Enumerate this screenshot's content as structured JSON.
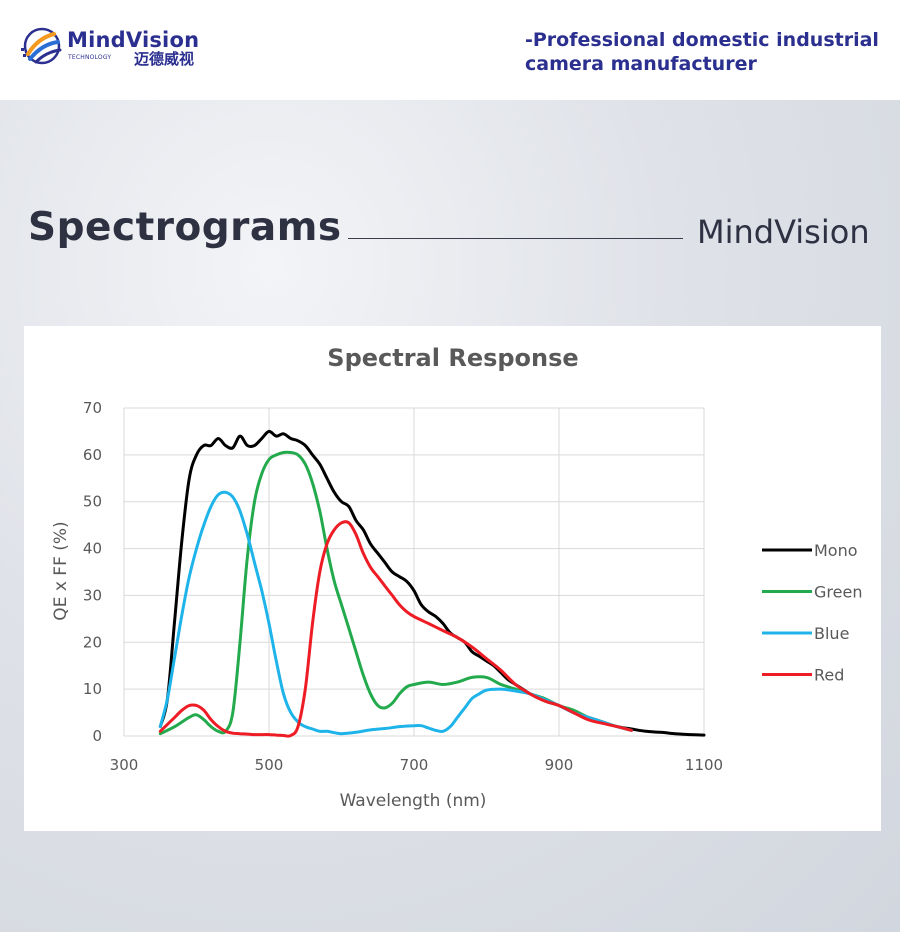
{
  "header": {
    "logo": {
      "brand": "MindVision",
      "sub": "TECHNOLOGY",
      "cn": "迈德威视"
    },
    "tagline_line1": "-Professional domestic industrial",
    "tagline_line2": "camera manufacturer"
  },
  "section": {
    "title": "Spectrograms",
    "brand": "MindVision"
  },
  "colors": {
    "brand_navy": "#2b2f8f",
    "mono": "#000000",
    "green": "#22aa4c",
    "blue": "#1eb4ea",
    "red": "#ee1c24"
  },
  "chart_data": {
    "type": "line",
    "title": "Spectral Response",
    "xlabel": "Wavelength (nm)",
    "ylabel": "QE x FF (%)",
    "xlim": [
      300,
      1100
    ],
    "ylim": [
      0,
      70
    ],
    "xticks": [
      300,
      500,
      700,
      900,
      1100
    ],
    "yticks": [
      0,
      10,
      20,
      30,
      40,
      50,
      60,
      70
    ],
    "grid": true,
    "legend_position": "right",
    "series": [
      {
        "name": "Mono",
        "color": "#000000",
        "points": [
          [
            350,
            2
          ],
          [
            360,
            8
          ],
          [
            370,
            25
          ],
          [
            380,
            42
          ],
          [
            390,
            55
          ],
          [
            400,
            60
          ],
          [
            410,
            62
          ],
          [
            420,
            62
          ],
          [
            430,
            63.5
          ],
          [
            440,
            62
          ],
          [
            450,
            61.5
          ],
          [
            460,
            64
          ],
          [
            470,
            62
          ],
          [
            480,
            62
          ],
          [
            490,
            63.5
          ],
          [
            500,
            65
          ],
          [
            510,
            64
          ],
          [
            520,
            64.5
          ],
          [
            530,
            63.5
          ],
          [
            540,
            63
          ],
          [
            550,
            62
          ],
          [
            560,
            60
          ],
          [
            570,
            58
          ],
          [
            580,
            55
          ],
          [
            590,
            52
          ],
          [
            600,
            50
          ],
          [
            610,
            49
          ],
          [
            620,
            46
          ],
          [
            630,
            44
          ],
          [
            640,
            41
          ],
          [
            650,
            39
          ],
          [
            660,
            37
          ],
          [
            670,
            35
          ],
          [
            680,
            34
          ],
          [
            690,
            33
          ],
          [
            700,
            31
          ],
          [
            710,
            28
          ],
          [
            720,
            26.5
          ],
          [
            730,
            25.5
          ],
          [
            740,
            24
          ],
          [
            750,
            22
          ],
          [
            760,
            21
          ],
          [
            770,
            20
          ],
          [
            780,
            18
          ],
          [
            790,
            17
          ],
          [
            800,
            16
          ],
          [
            810,
            15
          ],
          [
            820,
            13.5
          ],
          [
            830,
            12
          ],
          [
            840,
            11
          ],
          [
            850,
            10
          ],
          [
            860,
            9
          ],
          [
            880,
            7.5
          ],
          [
            900,
            6.5
          ],
          [
            920,
            5
          ],
          [
            940,
            4
          ],
          [
            960,
            3
          ],
          [
            980,
            2
          ],
          [
            1000,
            1.5
          ],
          [
            1020,
            1
          ],
          [
            1040,
            0.8
          ],
          [
            1060,
            0.5
          ],
          [
            1080,
            0.3
          ],
          [
            1100,
            0.2
          ]
        ]
      },
      {
        "name": "Green",
        "color": "#22aa4c",
        "points": [
          [
            350,
            0.5
          ],
          [
            370,
            2
          ],
          [
            390,
            4
          ],
          [
            400,
            4.5
          ],
          [
            410,
            3.5
          ],
          [
            420,
            2
          ],
          [
            430,
            1
          ],
          [
            440,
            1
          ],
          [
            450,
            5
          ],
          [
            460,
            20
          ],
          [
            470,
            38
          ],
          [
            480,
            50
          ],
          [
            490,
            56
          ],
          [
            500,
            59
          ],
          [
            510,
            60
          ],
          [
            520,
            60.5
          ],
          [
            530,
            60.5
          ],
          [
            540,
            60
          ],
          [
            550,
            58
          ],
          [
            560,
            54
          ],
          [
            570,
            48
          ],
          [
            580,
            40
          ],
          [
            590,
            33
          ],
          [
            600,
            28
          ],
          [
            610,
            23
          ],
          [
            620,
            18
          ],
          [
            630,
            13
          ],
          [
            640,
            9
          ],
          [
            650,
            6.5
          ],
          [
            660,
            6
          ],
          [
            670,
            7
          ],
          [
            680,
            9
          ],
          [
            690,
            10.5
          ],
          [
            700,
            11
          ],
          [
            720,
            11.5
          ],
          [
            740,
            11
          ],
          [
            760,
            11.5
          ],
          [
            780,
            12.5
          ],
          [
            800,
            12.5
          ],
          [
            820,
            11
          ],
          [
            840,
            10
          ],
          [
            860,
            9
          ],
          [
            880,
            8
          ],
          [
            900,
            6.5
          ],
          [
            920,
            5.5
          ],
          [
            940,
            4
          ],
          [
            960,
            3
          ],
          [
            980,
            2
          ],
          [
            1000,
            1.2
          ]
        ]
      },
      {
        "name": "Blue",
        "color": "#1eb4ea",
        "points": [
          [
            350,
            2
          ],
          [
            360,
            8
          ],
          [
            370,
            17
          ],
          [
            380,
            26
          ],
          [
            390,
            34
          ],
          [
            400,
            40
          ],
          [
            410,
            45
          ],
          [
            420,
            49
          ],
          [
            430,
            51.5
          ],
          [
            440,
            52
          ],
          [
            450,
            51
          ],
          [
            460,
            48
          ],
          [
            470,
            43
          ],
          [
            480,
            37
          ],
          [
            490,
            31
          ],
          [
            500,
            24
          ],
          [
            510,
            16
          ],
          [
            520,
            9
          ],
          [
            530,
            5
          ],
          [
            540,
            3
          ],
          [
            550,
            2
          ],
          [
            560,
            1.5
          ],
          [
            570,
            1
          ],
          [
            580,
            1
          ],
          [
            590,
            0.7
          ],
          [
            600,
            0.5
          ],
          [
            620,
            0.8
          ],
          [
            640,
            1.3
          ],
          [
            660,
            1.6
          ],
          [
            680,
            2
          ],
          [
            700,
            2.2
          ],
          [
            710,
            2.2
          ],
          [
            720,
            1.7
          ],
          [
            730,
            1.2
          ],
          [
            740,
            1
          ],
          [
            750,
            2
          ],
          [
            760,
            4
          ],
          [
            770,
            6
          ],
          [
            780,
            8
          ],
          [
            790,
            9
          ],
          [
            800,
            9.8
          ],
          [
            820,
            10
          ],
          [
            840,
            9.6
          ],
          [
            860,
            9
          ],
          [
            880,
            7.8
          ],
          [
            900,
            6.5
          ],
          [
            920,
            5
          ],
          [
            940,
            4
          ],
          [
            960,
            3
          ],
          [
            980,
            2
          ],
          [
            1000,
            1.2
          ]
        ]
      },
      {
        "name": "Red",
        "color": "#ee1c24",
        "points": [
          [
            350,
            1
          ],
          [
            360,
            2.5
          ],
          [
            370,
            4
          ],
          [
            380,
            5.5
          ],
          [
            390,
            6.5
          ],
          [
            400,
            6.5
          ],
          [
            410,
            5.5
          ],
          [
            420,
            3.5
          ],
          [
            430,
            2
          ],
          [
            440,
            1
          ],
          [
            450,
            0.6
          ],
          [
            460,
            0.5
          ],
          [
            470,
            0.4
          ],
          [
            480,
            0.3
          ],
          [
            490,
            0.3
          ],
          [
            500,
            0.3
          ],
          [
            510,
            0.2
          ],
          [
            520,
            0.1
          ],
          [
            530,
            0.1
          ],
          [
            540,
            2
          ],
          [
            550,
            10
          ],
          [
            560,
            24
          ],
          [
            570,
            35
          ],
          [
            580,
            41
          ],
          [
            590,
            44
          ],
          [
            600,
            45.5
          ],
          [
            610,
            45.5
          ],
          [
            620,
            43
          ],
          [
            630,
            39
          ],
          [
            640,
            36
          ],
          [
            650,
            34
          ],
          [
            660,
            32
          ],
          [
            670,
            30
          ],
          [
            680,
            28
          ],
          [
            690,
            26.5
          ],
          [
            700,
            25.5
          ],
          [
            720,
            24
          ],
          [
            740,
            22.5
          ],
          [
            760,
            21
          ],
          [
            780,
            19
          ],
          [
            800,
            16.5
          ],
          [
            820,
            14
          ],
          [
            840,
            11
          ],
          [
            860,
            9
          ],
          [
            880,
            7.5
          ],
          [
            900,
            6.5
          ],
          [
            920,
            5
          ],
          [
            940,
            3.5
          ],
          [
            960,
            2.7
          ],
          [
            980,
            2
          ],
          [
            1000,
            1.2
          ]
        ]
      }
    ]
  }
}
